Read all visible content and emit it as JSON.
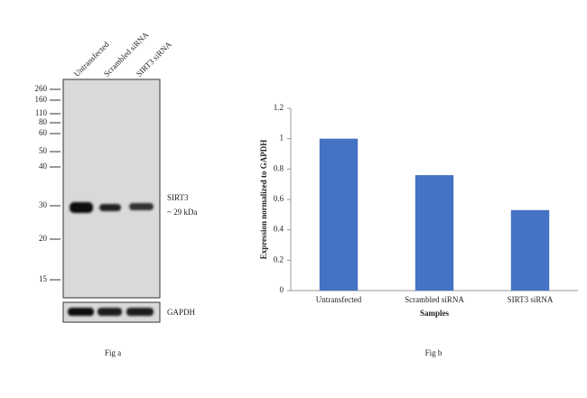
{
  "blot": {
    "lanes": [
      "Untransfected",
      "Scrambled siRNA",
      "SIRT3 siRNA"
    ],
    "markers": [
      260,
      160,
      110,
      80,
      60,
      50,
      40,
      30,
      20,
      15
    ],
    "band_label": "SIRT3",
    "band_size": "~ 29 kDa",
    "loading_control": "GAPDH",
    "caption": "Fig a"
  },
  "chart_data": {
    "type": "bar",
    "caption": "Fig b",
    "categories": [
      "Untransfected",
      "Scrambled siRNA",
      "SIRT3 siRNA"
    ],
    "values": [
      1,
      0.76,
      0.53
    ],
    "color": "#4472c4",
    "ylim": [
      0,
      1.2
    ],
    "yticks": [
      0,
      0.2,
      0.4,
      0.6,
      0.8,
      1,
      1.2
    ],
    "xlabel": "Samples",
    "ylabel": "Expression normalized to GAPDH",
    "grid": false
  }
}
